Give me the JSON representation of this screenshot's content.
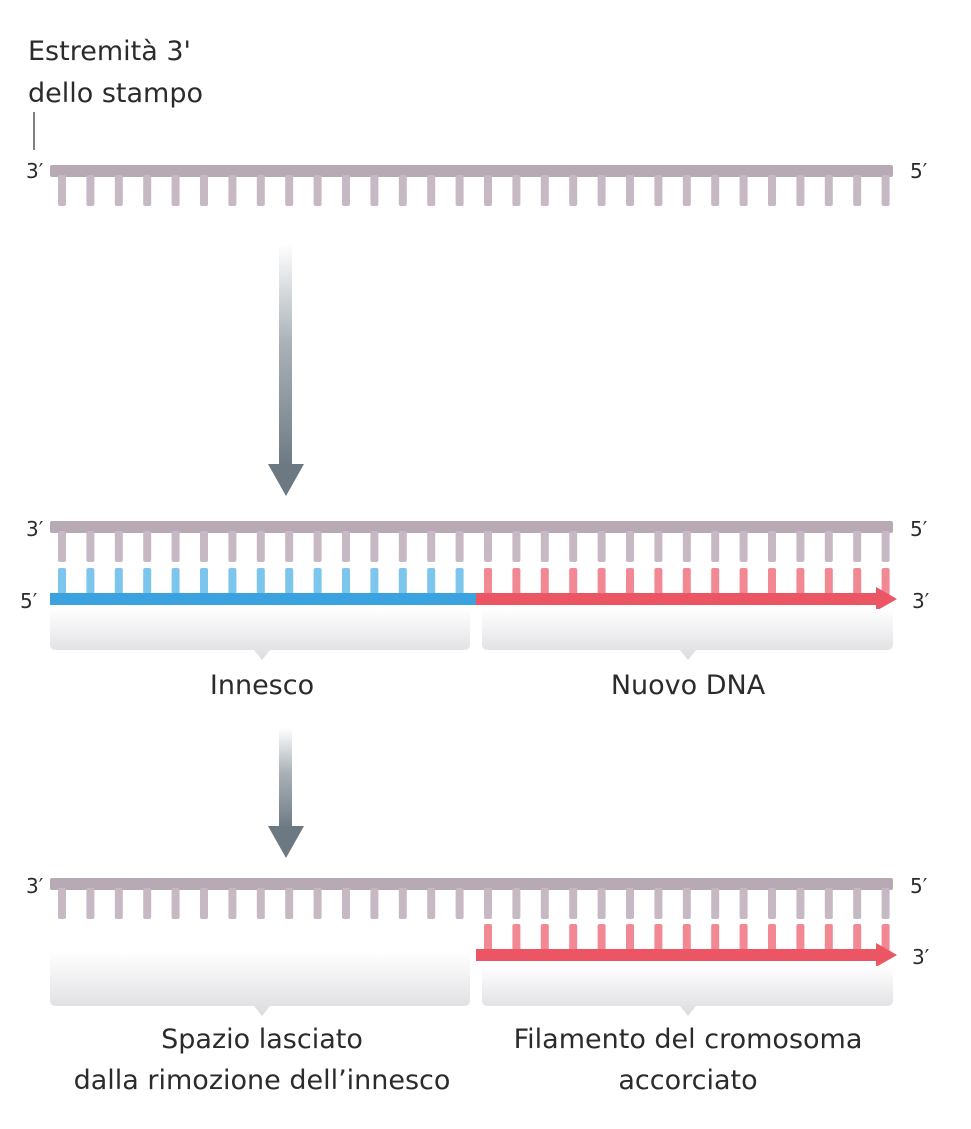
{
  "title_line1": "Estremità 3'",
  "title_line2": "dello stampo",
  "ends": {
    "top_left": "3′",
    "top_right": "5′",
    "mid_left_top": "3′",
    "mid_right_top": "5′",
    "mid_left_bottom": "5′",
    "mid_right_bottom": "3′",
    "bot_left_top": "3′",
    "bot_right_top": "5′",
    "bot_right_bottom": "3′"
  },
  "labels": {
    "primer": "Innesco",
    "new_dna": "Nuovo DNA",
    "gap_line1": "Spazio lasciato",
    "gap_line2": "dalla rimozione dell’innesco",
    "shortened_line1": "Filamento del cromosoma",
    "shortened_line2": "accorciato"
  },
  "colors": {
    "template": "#b8aab4",
    "template_tooth": "#c6b9c3",
    "primer": "#3aa3df",
    "primer_tooth": "#7cc5ec",
    "new_dna": "#ec5563",
    "new_dna_tooth": "#f28893",
    "arrow": "#7b8790",
    "bracket": "#e3e3e6"
  }
}
